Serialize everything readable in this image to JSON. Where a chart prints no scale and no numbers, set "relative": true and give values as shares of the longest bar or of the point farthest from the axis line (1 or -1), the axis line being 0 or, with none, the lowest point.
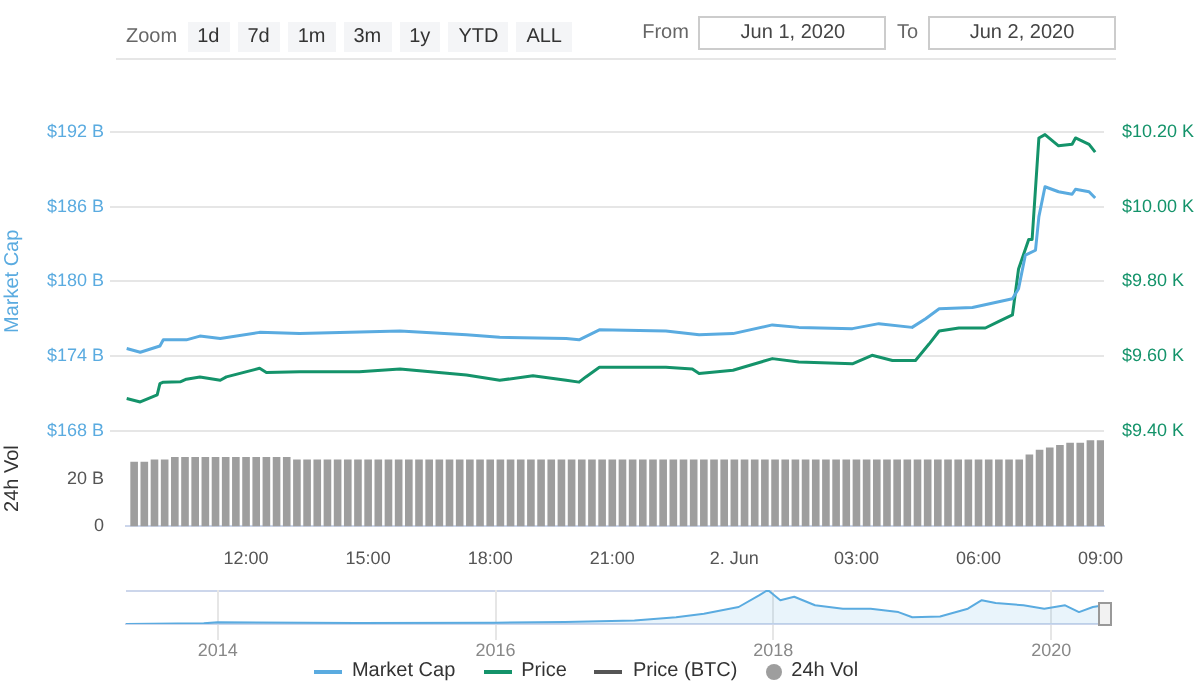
{
  "chart_data": [
    {
      "type": "other",
      "annotations": [
        "Zoom",
        "1d",
        "7d",
        "1m",
        "3m",
        "1y",
        "YTD",
        "ALL",
        "From",
        "Jun 1, 2020",
        "To",
        "Jun 2, 2020"
      ]
    },
    {
      "type": "line",
      "ylabel": "Market Cap",
      "y3label": "24h Vol",
      "legend": "bottom",
      "grid": "y",
      "xlim": [
        "2020-06-01T09:03",
        "2020-06-02T09:05"
      ],
      "xticks": [
        {
          "value": "2020-06-01T12:00",
          "label": "12:00"
        },
        {
          "value": "2020-06-01T15:00",
          "label": "15:00"
        },
        {
          "value": "2020-06-01T18:00",
          "label": "18:00"
        },
        {
          "value": "2020-06-01T21:00",
          "label": "21:00"
        },
        {
          "value": "2020-06-02",
          "label": "2. Jun"
        },
        {
          "value": "2020-06-02T03:00",
          "label": "03:00"
        },
        {
          "value": "2020-06-02T06:00",
          "label": "06:00"
        },
        {
          "value": "2020-06-02T09:00",
          "label": "09:00"
        }
      ],
      "ylim": [
        168,
        192
      ],
      "yticks": [
        {
          "value": 168,
          "label": "$168 B"
        },
        {
          "value": 174,
          "label": "$174 B"
        },
        {
          "value": 180,
          "label": "$180 B"
        },
        {
          "value": 186,
          "label": "$186 B"
        },
        {
          "value": 192,
          "label": "$192 B"
        }
      ],
      "y2lim": [
        9.4,
        10.2
      ],
      "y2ticks": [
        {
          "value": 9.4,
          "label": "$9.40 K"
        },
        {
          "value": 9.6,
          "label": "$9.60 K"
        },
        {
          "value": 9.8,
          "label": "$9.80 K"
        },
        {
          "value": 10.0,
          "label": "$10.00 K"
        },
        {
          "value": 10.2,
          "label": "$10.20 K"
        }
      ],
      "y3lim": [
        0,
        40
      ],
      "y3ticks": [
        0,
        {
          "value": 20,
          "label": "20 B"
        }
      ],
      "series": [
        {
          "name": "Market Cap",
          "type": "line",
          "color": "#5aabe0",
          "x": [
            "2020-06-01T09:04",
            "2020-06-01T09:24",
            "2020-06-01T09:53",
            "2020-06-01T09:58",
            "2020-06-01T10:32",
            "2020-06-01T10:52",
            "2020-06-01T11:22",
            "2020-06-01T12:20",
            "2020-06-01T13:19",
            "2020-06-01T15:47",
            "2020-06-01T17:25",
            "2020-06-01T18:14",
            "2020-06-01T19:52",
            "2020-06-01T20:11",
            "2020-06-01T20:41",
            "2020-06-01T22:19",
            "2020-06-01T23:08",
            "2020-06-01T23:58",
            "2020-06-02T00:56",
            "2020-06-02T01:35",
            "2020-06-02T02:54",
            "2020-06-02T03:33",
            "2020-06-02T04:22",
            "2020-06-02T04:42",
            "2020-06-02T05:02",
            "2020-06-02T05:51",
            "2020-06-02T06:50",
            "2020-06-02T06:59",
            "2020-06-02T07:09",
            "2020-06-02T07:24",
            "2020-06-02T07:29",
            "2020-06-02T07:38",
            "2020-06-02T07:58",
            "2020-06-02T08:18",
            "2020-06-02T08:23",
            "2020-06-02T08:43",
            "2020-06-02T08:52"
          ],
          "values": [
            174.6,
            174.3,
            174.8,
            175.3,
            175.3,
            175.6,
            175.4,
            175.9,
            175.8,
            176.0,
            175.7,
            175.5,
            175.4,
            175.3,
            176.1,
            176.0,
            175.7,
            175.8,
            176.5,
            176.3,
            176.2,
            176.6,
            176.3,
            177.0,
            177.8,
            177.9,
            178.6,
            179.4,
            182.1,
            182.5,
            185.2,
            187.6,
            187.2,
            187.0,
            187.4,
            187.2,
            186.7
          ]
        },
        {
          "name": "Price",
          "type": "line",
          "axis": "y2",
          "color": "#14936a",
          "x": [
            "2020-06-01T09:04",
            "2020-06-01T09:24",
            "2020-06-01T09:49",
            "2020-06-01T09:53",
            "2020-06-01T09:58",
            "2020-06-01T10:23",
            "2020-06-01T10:32",
            "2020-06-01T10:52",
            "2020-06-01T11:22",
            "2020-06-01T11:31",
            "2020-06-01T12:20",
            "2020-06-01T12:30",
            "2020-06-01T13:19",
            "2020-06-01T14:47",
            "2020-06-01T15:47",
            "2020-06-01T17:25",
            "2020-06-01T18:14",
            "2020-06-01T19:03",
            "2020-06-01T19:52",
            "2020-06-01T20:11",
            "2020-06-01T20:21",
            "2020-06-01T20:41",
            "2020-06-01T22:19",
            "2020-06-01T22:58",
            "2020-06-01T23:08",
            "2020-06-01T23:58",
            "2020-06-02T00:56",
            "2020-06-02T01:35",
            "2020-06-02T02:54",
            "2020-06-02T03:23",
            "2020-06-02T03:53",
            "2020-06-02T04:27",
            "2020-06-02T04:47",
            "2020-06-02T05:02",
            "2020-06-02T05:31",
            "2020-06-02T06:10",
            "2020-06-02T06:30",
            "2020-06-02T06:50",
            "2020-06-02T06:59",
            "2020-06-02T07:14",
            "2020-06-02T07:19",
            "2020-06-02T07:29",
            "2020-06-02T07:38",
            "2020-06-02T07:58",
            "2020-06-02T08:18",
            "2020-06-02T08:23",
            "2020-06-02T08:43",
            "2020-06-02T08:52"
          ],
          "values": [
            9.486,
            9.477,
            9.496,
            9.526,
            9.53,
            9.531,
            9.538,
            9.544,
            9.535,
            9.544,
            9.567,
            9.556,
            9.558,
            9.558,
            9.565,
            9.549,
            9.535,
            9.547,
            9.535,
            9.53,
            9.544,
            9.57,
            9.57,
            9.565,
            9.553,
            9.562,
            9.593,
            9.584,
            9.579,
            9.602,
            9.588,
            9.588,
            9.632,
            9.667,
            9.675,
            9.675,
            9.693,
            9.71,
            9.833,
            9.912,
            9.912,
            10.184,
            10.193,
            10.163,
            10.167,
            10.184,
            10.167,
            10.146
          ]
        },
        {
          "name": "Price (BTC)",
          "type": "line",
          "color": "#555555"
        },
        {
          "name": "24h Vol",
          "type": "bar",
          "axis": "y3",
          "color": "#9e9e9e",
          "x": [
            "2020-06-01T09:15",
            "2020-06-01T09:30",
            "2020-06-01T09:45",
            "2020-06-01T10:00",
            "2020-06-01T10:15",
            "2020-06-01T10:30",
            "2020-06-01T10:45",
            "2020-06-01T11:00",
            "2020-06-01T11:15",
            "2020-06-01T11:30",
            "2020-06-01T11:45",
            "2020-06-01T12:00",
            "2020-06-01T12:15",
            "2020-06-01T12:30",
            "2020-06-01T12:45",
            "2020-06-01T13:00",
            "2020-06-01T13:15",
            "2020-06-01T13:30",
            "2020-06-01T13:45",
            "2020-06-01T14:00",
            "2020-06-01T14:15",
            "2020-06-01T14:30",
            "2020-06-01T14:45",
            "2020-06-01T15:00",
            "2020-06-01T15:15",
            "2020-06-01T15:30",
            "2020-06-01T15:45",
            "2020-06-01T16:00",
            "2020-06-01T16:15",
            "2020-06-01T16:30",
            "2020-06-01T16:45",
            "2020-06-01T17:00",
            "2020-06-01T17:15",
            "2020-06-01T17:30",
            "2020-06-01T17:45",
            "2020-06-01T18:00",
            "2020-06-01T18:15",
            "2020-06-01T18:30",
            "2020-06-01T18:45",
            "2020-06-01T19:00",
            "2020-06-01T19:15",
            "2020-06-01T19:30",
            "2020-06-01T19:45",
            "2020-06-01T20:00",
            "2020-06-01T20:15",
            "2020-06-01T20:30",
            "2020-06-01T20:45",
            "2020-06-01T21:00",
            "2020-06-01T21:15",
            "2020-06-01T21:30",
            "2020-06-01T21:45",
            "2020-06-01T22:00",
            "2020-06-01T22:15",
            "2020-06-01T22:30",
            "2020-06-01T22:45",
            "2020-06-01T23:00",
            "2020-06-01T23:15",
            "2020-06-01T23:30",
            "2020-06-01T23:45",
            "2020-06-02T00:00",
            "2020-06-02T00:15",
            "2020-06-02T00:30",
            "2020-06-02T00:45",
            "2020-06-02T01:00",
            "2020-06-02T01:15",
            "2020-06-02T01:30",
            "2020-06-02T01:45",
            "2020-06-02T02:00",
            "2020-06-02T02:15",
            "2020-06-02T02:30",
            "2020-06-02T02:45",
            "2020-06-02T03:00",
            "2020-06-02T03:15",
            "2020-06-02T03:30",
            "2020-06-02T03:45",
            "2020-06-02T04:00",
            "2020-06-02T04:15",
            "2020-06-02T04:30",
            "2020-06-02T04:45",
            "2020-06-02T05:00",
            "2020-06-02T05:15",
            "2020-06-02T05:30",
            "2020-06-02T05:45",
            "2020-06-02T06:00",
            "2020-06-02T06:15",
            "2020-06-02T06:30",
            "2020-06-02T06:45",
            "2020-06-02T07:00",
            "2020-06-02T07:15",
            "2020-06-02T07:30",
            "2020-06-02T07:45",
            "2020-06-02T08:00",
            "2020-06-02T08:15",
            "2020-06-02T08:30",
            "2020-06-02T08:45",
            "2020-06-02T09:00"
          ],
          "values": [
            27,
            27,
            28,
            28,
            29,
            29,
            29,
            29,
            29,
            29,
            29,
            29,
            29,
            29,
            29,
            29,
            28,
            28,
            28,
            28,
            28,
            28,
            28,
            28,
            28,
            28,
            28,
            28,
            28,
            28,
            28,
            28,
            28,
            28,
            28,
            28,
            28,
            28,
            28,
            28,
            28,
            28,
            28,
            28,
            28,
            28,
            28,
            28,
            28,
            28,
            28,
            28,
            28,
            28,
            28,
            28,
            28,
            28,
            28,
            28,
            28,
            28,
            28,
            28,
            28,
            28,
            28,
            28,
            28,
            28,
            28,
            28,
            28,
            28,
            28,
            28,
            28,
            28,
            28,
            28,
            28,
            28,
            28,
            28,
            28,
            28,
            28,
            28,
            30,
            32,
            33,
            34,
            35,
            35,
            36,
            36
          ]
        }
      ]
    },
    {
      "type": "area",
      "relative": true,
      "grid": "x",
      "color": "#5aabe0",
      "xlim": [
        2013.34,
        2020.38
      ],
      "xticks": [
        2014,
        2016,
        2018,
        2020
      ],
      "x": [
        2013.34,
        2013.9,
        2014.0,
        2015.0,
        2016.0,
        2016.5,
        2017.0,
        2017.3,
        2017.5,
        2017.75,
        2017.9,
        2017.96,
        2018.05,
        2018.15,
        2018.3,
        2018.5,
        2018.7,
        2018.9,
        2019.0,
        2019.2,
        2019.4,
        2019.5,
        2019.6,
        2019.8,
        2019.95,
        2020.1,
        2020.2,
        2020.3,
        2020.38
      ],
      "values": [
        0,
        0.02,
        0.05,
        0.03,
        0.04,
        0.06,
        0.1,
        0.2,
        0.3,
        0.5,
        0.85,
        1,
        0.7,
        0.8,
        0.55,
        0.45,
        0.45,
        0.35,
        0.2,
        0.22,
        0.45,
        0.7,
        0.62,
        0.55,
        0.45,
        0.55,
        0.35,
        0.5,
        0.55
      ]
    }
  ]
}
